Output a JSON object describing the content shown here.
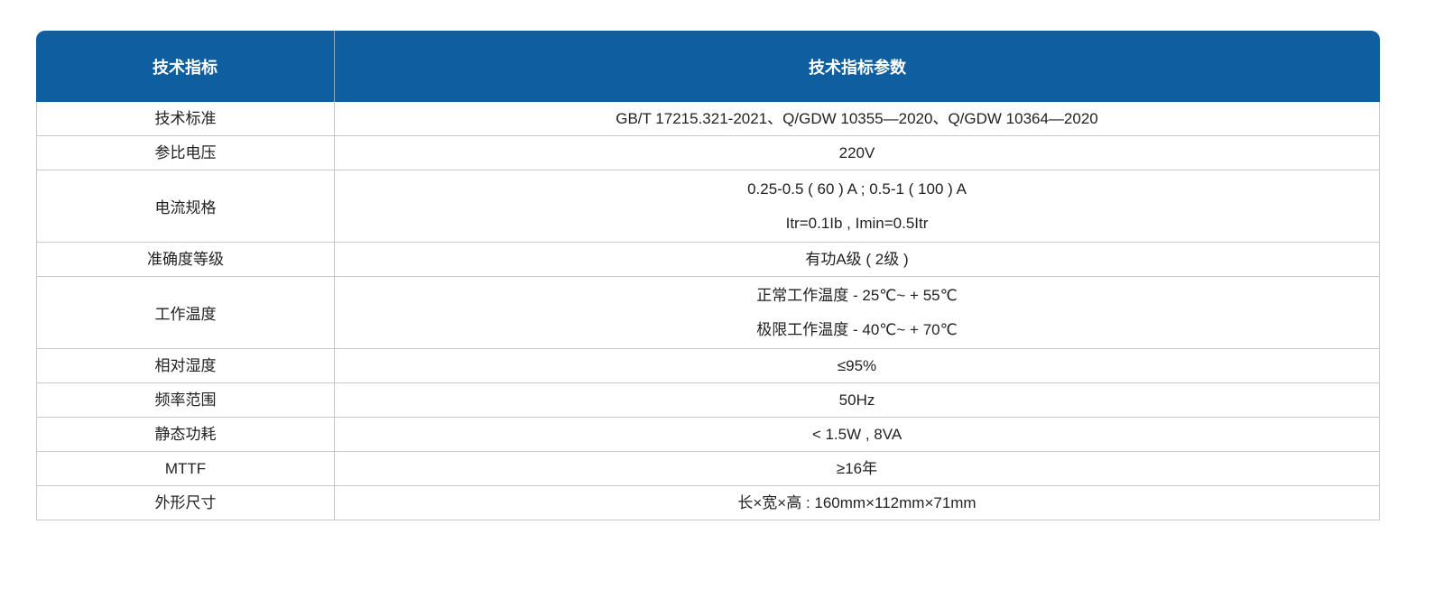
{
  "header": {
    "col1": "技术指标",
    "col2": "技术指标参数"
  },
  "rows": [
    {
      "name": "技术标准",
      "values": [
        "GB/T 17215.321-2021、Q/GDW 10355—2020、Q/GDW 10364—2020"
      ]
    },
    {
      "name": "参比电压",
      "values": [
        "220V"
      ]
    },
    {
      "name": "电流规格",
      "values": [
        "0.25-0.5 ( 60 ) A ; 0.5-1 ( 100 ) A",
        "Itr=0.1Ib ,  Imin=0.5Itr"
      ]
    },
    {
      "name": "准确度等级",
      "values": [
        "有功A级 ( 2级 )"
      ]
    },
    {
      "name": "工作温度",
      "values": [
        "正常工作温度 - 25℃~ + 55℃",
        "极限工作温度 - 40℃~ + 70℃"
      ]
    },
    {
      "name": "相对湿度",
      "values": [
        "≤95%"
      ]
    },
    {
      "name": "频率范围",
      "values": [
        "50Hz"
      ]
    },
    {
      "name": "静态功耗",
      "values": [
        "< 1.5W , 8VA"
      ]
    },
    {
      "name": "MTTF",
      "values": [
        "≥16年"
      ]
    },
    {
      "name": "外形尺寸",
      "values": [
        "长×宽×高 : 160mm×112mm×71mm"
      ]
    }
  ]
}
